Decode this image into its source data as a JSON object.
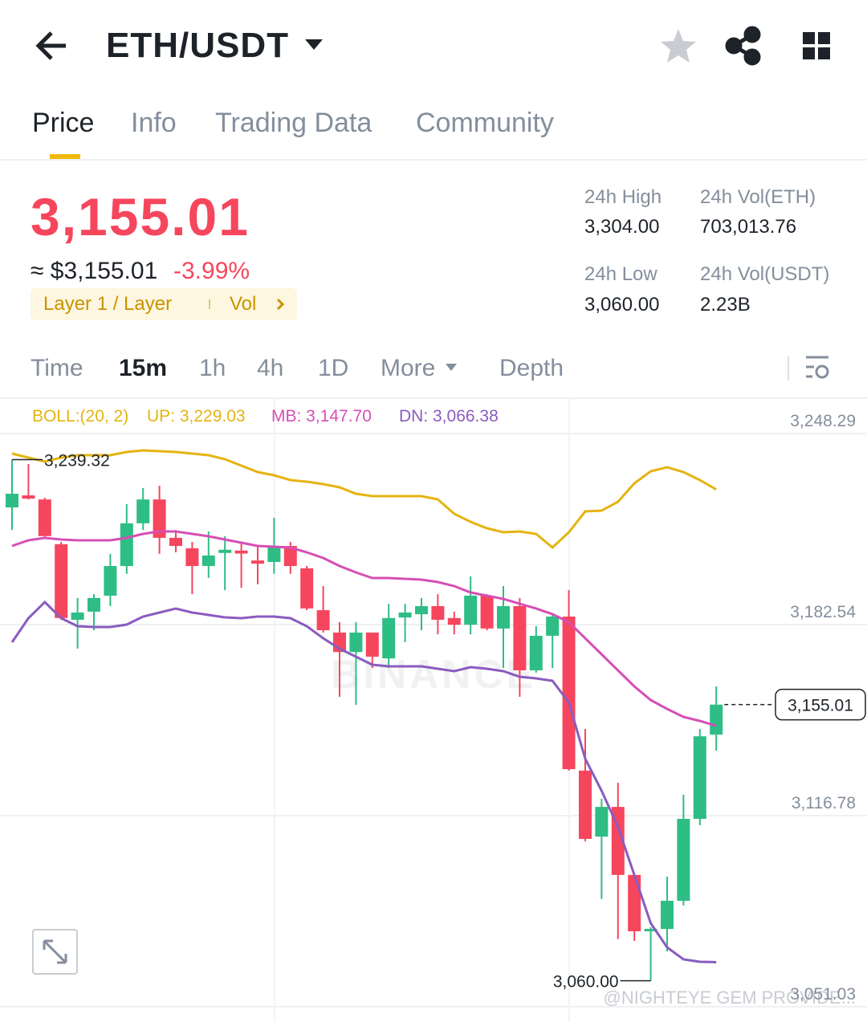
{
  "header": {
    "title": "ETH/USDT"
  },
  "tabs": [
    "Price",
    "Info",
    "Trading Data",
    "Community"
  ],
  "price": {
    "last": "3,155.01",
    "approx": "≈ $3,155.01",
    "change": "-3.99%",
    "tag": "Layer 1 / Layer",
    "tag_vol": "Vol"
  },
  "stats": [
    {
      "label": "24h High",
      "value": "3,304.00"
    },
    {
      "label": "24h Vol(ETH)",
      "value": "703,013.76"
    },
    {
      "label": "24h Low",
      "value": "3,060.00"
    },
    {
      "label": "24h Vol(USDT)",
      "value": "2.23B"
    }
  ],
  "intervals": [
    "Time",
    "15m",
    "1h",
    "4h",
    "1D",
    "More",
    "Depth"
  ],
  "watermark": "BINANCE",
  "credit": "@NIGHTEYE GEM PROVIDE...",
  "chart_data": {
    "type": "candlestick",
    "indicator": "BOLL:(20, 2)",
    "up_color": "#2ebd85",
    "down_color": "#f6465d",
    "open": [
      3222.87,
      3227.0,
      3225.6,
      3210.2,
      3184.2,
      3187.0,
      3192.5,
      3202.7,
      3217.4,
      3225.6,
      3212.4,
      3208.8,
      3202.7,
      3207.2,
      3208.0,
      3204.6,
      3204.1,
      3209.6,
      3201.9,
      3187.5,
      3179.8,
      3173.1,
      3179.8,
      3170.9,
      3185.0,
      3186.1,
      3188.9,
      3184.8,
      3182.5,
      3192.5,
      3181.2,
      3188.9,
      3166.8,
      3178.7,
      3185.3,
      3132.3,
      3109.6,
      3119.8,
      3096.4,
      3077.0,
      3077.8,
      3087.5,
      3115.7,
      3144.7
    ],
    "high": [
      3239.32,
      3237.8,
      3226.2,
      3211.0,
      3191.7,
      3193.0,
      3206.9,
      3224.0,
      3229.5,
      3230.3,
      3215.1,
      3211.0,
      3214.6,
      3213.0,
      3211.0,
      3209.6,
      3219.3,
      3211.0,
      3202.7,
      3195.8,
      3183.4,
      3183.4,
      3179.8,
      3189.7,
      3189.7,
      3191.7,
      3193.0,
      3187.0,
      3199.1,
      3193.0,
      3195.8,
      3191.7,
      3182.0,
      3186.1,
      3194.4,
      3146.6,
      3122.6,
      3128.1,
      3096.9,
      3078.4,
      3095.8,
      3124.0,
      3146.6,
      3161.3
    ],
    "low": [
      3215.1,
      3225.6,
      3212.8,
      3184.2,
      3174.3,
      3180.6,
      3188.9,
      3200.0,
      3215.1,
      3206.9,
      3207.4,
      3193.0,
      3198.6,
      3194.4,
      3195.2,
      3196.4,
      3200.0,
      3200.0,
      3187.5,
      3179.8,
      3157.7,
      3154.9,
      3167.6,
      3167.6,
      3176.5,
      3180.6,
      3179.2,
      3179.2,
      3179.2,
      3180.6,
      3167.6,
      3157.7,
      3166.0,
      3167.6,
      3132.3,
      3108.0,
      3088.1,
      3074.3,
      3073.7,
      3060.0,
      3070.1,
      3085.9,
      3113.5,
      3139.2
    ],
    "close": [
      3227.57,
      3225.9,
      3213.0,
      3184.8,
      3186.7,
      3191.7,
      3202.7,
      3217.4,
      3225.6,
      3212.4,
      3209.6,
      3202.7,
      3206.3,
      3208.3,
      3207.0,
      3203.5,
      3209.1,
      3202.7,
      3188.1,
      3180.6,
      3173.1,
      3179.8,
      3171.5,
      3184.8,
      3186.7,
      3188.9,
      3184.2,
      3182.5,
      3192.5,
      3181.2,
      3188.9,
      3166.8,
      3178.7,
      3185.3,
      3132.8,
      3108.8,
      3119.8,
      3096.4,
      3077.0,
      3077.8,
      3087.5,
      3115.7,
      3144.1,
      3155.01
    ],
    "series": [
      {
        "name": "UP: 3,229.03",
        "color": "#e5b412",
        "values": [
          3241.38,
          3240.0,
          3238.62,
          3240.0,
          3240.83,
          3240.83,
          3240.83,
          3241.94,
          3242.49,
          3242.21,
          3241.94,
          3241.38,
          3240.83,
          3239.45,
          3237.24,
          3235.03,
          3233.92,
          3232.27,
          3231.71,
          3230.89,
          3229.78,
          3227.57,
          3226.74,
          3226.74,
          3226.74,
          3226.74,
          3225.64,
          3220.66,
          3217.9,
          3215.69,
          3214.31,
          3214.59,
          3213.76,
          3209.06,
          3214.31,
          3221.49,
          3221.77,
          3224.81,
          3231.16,
          3235.31,
          3236.69,
          3235.03,
          3232.27,
          3229.03
        ]
      },
      {
        "name": "MB: 3,147.70",
        "color": "#d64fb4",
        "values": [
          3209.61,
          3211.55,
          3212.38,
          3211.82,
          3211.55,
          3211.55,
          3211.55,
          3212.38,
          3213.76,
          3214.59,
          3214.59,
          3213.76,
          3212.93,
          3211.82,
          3210.72,
          3209.61,
          3209.34,
          3209.06,
          3207.4,
          3205.47,
          3202.71,
          3200.5,
          3198.56,
          3198.56,
          3198.29,
          3198.01,
          3197.18,
          3195.8,
          3193.59,
          3192.49,
          3191.38,
          3189.72,
          3188.07,
          3186.13,
          3183.37,
          3177.84,
          3172.32,
          3166.79,
          3161.27,
          3156.57,
          3153.53,
          3150.77,
          3149.39,
          3147.7
        ]
      },
      {
        "name": "DN: 3,066.38",
        "color": "#8a5cbf",
        "values": [
          3176.46,
          3184.75,
          3190.28,
          3184.75,
          3181.99,
          3181.71,
          3181.71,
          3182.54,
          3185.3,
          3186.68,
          3188.07,
          3186.68,
          3185.86,
          3185.03,
          3184.75,
          3185.3,
          3185.3,
          3184.75,
          3181.99,
          3177.84,
          3174.25,
          3171.49,
          3168.73,
          3168.17,
          3168.17,
          3168.17,
          3167.35,
          3166.52,
          3167.9,
          3167.35,
          3166.52,
          3164.58,
          3164.03,
          3163.2,
          3155.74,
          3136.4,
          3125.35,
          3112.92,
          3096.35,
          3079.77,
          3071.48,
          3067.34,
          3066.5,
          3066.38
        ]
      }
    ],
    "ylim": [
      3045.79,
      3260.17
    ],
    "yticks": [
      {
        "value": 3248.29,
        "label": "3,248.29"
      },
      {
        "value": 3182.54,
        "label": "3,182.54"
      },
      {
        "value": 3116.78,
        "label": "3,116.78"
      },
      {
        "value": 3051.03,
        "label": "3,051.03"
      }
    ],
    "grid": true,
    "annotations": {
      "high": {
        "value": 3239.32,
        "label": "3,239.32"
      },
      "low": {
        "value": 3060.0,
        "label": "3,060.00"
      },
      "last": {
        "value": 3155.01,
        "label": "3,155.01"
      }
    }
  }
}
